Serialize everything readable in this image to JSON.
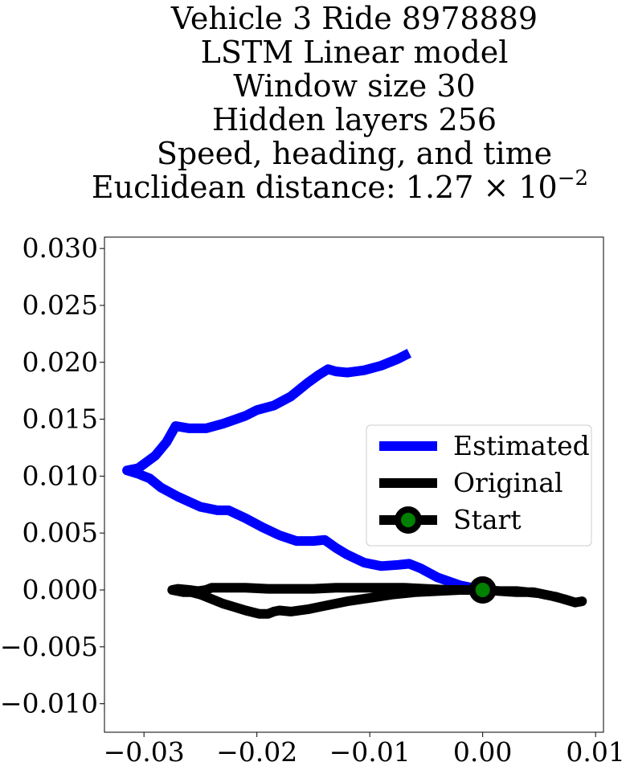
{
  "chart_data": {
    "type": "line",
    "title_lines": [
      "Vehicle 3 Ride 8978889",
      "LSTM Linear model",
      "Window size 30",
      "Hidden layers 256",
      "Speed, heading, and time"
    ],
    "title_distance_prefix": "Euclidean distance: 1.27 × 10",
    "title_distance_exponent": "−2",
    "xlim": [
      -0.0335,
      0.0107
    ],
    "ylim": [
      -0.0125,
      0.031
    ],
    "x_ticks": [
      -0.03,
      -0.02,
      -0.01,
      0.0,
      0.01
    ],
    "x_tick_labels": [
      "−0.03",
      "−0.02",
      "−0.01",
      "0.00",
      "0.01"
    ],
    "y_ticks": [
      0.03,
      0.025,
      0.02,
      0.015,
      0.01,
      0.005,
      0.0,
      -0.005,
      -0.01
    ],
    "y_tick_labels": [
      "0.030",
      "0.025",
      "0.020",
      "0.015",
      "0.010",
      "0.005",
      "0.000",
      "−0.005",
      "−0.010"
    ],
    "grid": false,
    "legend_position": "center-right",
    "series": [
      {
        "name": "Estimated",
        "color": "#0000ff",
        "points": [
          [
            0.0,
            0.0
          ],
          [
            -0.002,
            0.0004
          ],
          [
            -0.004,
            0.0011
          ],
          [
            -0.0055,
            0.0019
          ],
          [
            -0.0065,
            0.0023
          ],
          [
            -0.0075,
            0.0022
          ],
          [
            -0.009,
            0.0021
          ],
          [
            -0.0105,
            0.0024
          ],
          [
            -0.012,
            0.0031
          ],
          [
            -0.013,
            0.0037
          ],
          [
            -0.014,
            0.0044
          ],
          [
            -0.015,
            0.0043
          ],
          [
            -0.0165,
            0.0043
          ],
          [
            -0.018,
            0.0048
          ],
          [
            -0.0195,
            0.0055
          ],
          [
            -0.021,
            0.0063
          ],
          [
            -0.0225,
            0.007
          ],
          [
            -0.0235,
            0.007
          ],
          [
            -0.025,
            0.0073
          ],
          [
            -0.027,
            0.0082
          ],
          [
            -0.0285,
            0.009
          ],
          [
            -0.0295,
            0.0098
          ],
          [
            -0.03,
            0.01
          ],
          [
            -0.0305,
            0.0102
          ],
          [
            -0.0315,
            0.0105
          ],
          [
            -0.0305,
            0.0107
          ],
          [
            -0.029,
            0.0118
          ],
          [
            -0.028,
            0.013
          ],
          [
            -0.0272,
            0.0144
          ],
          [
            -0.026,
            0.0142
          ],
          [
            -0.0245,
            0.0142
          ],
          [
            -0.023,
            0.0146
          ],
          [
            -0.021,
            0.0153
          ],
          [
            -0.02,
            0.0158
          ],
          [
            -0.0185,
            0.0162
          ],
          [
            -0.017,
            0.017
          ],
          [
            -0.0155,
            0.0182
          ],
          [
            -0.0145,
            0.0189
          ],
          [
            -0.0137,
            0.0194
          ],
          [
            -0.013,
            0.0192
          ],
          [
            -0.012,
            0.0191
          ],
          [
            -0.0105,
            0.0193
          ],
          [
            -0.009,
            0.0197
          ],
          [
            -0.0075,
            0.0203
          ],
          [
            -0.0065,
            0.0208
          ]
        ]
      },
      {
        "name": "Original",
        "color": "#000000",
        "points": [
          [
            0.0,
            0.0
          ],
          [
            0.0015,
            -0.0001
          ],
          [
            0.003,
            -0.0002
          ],
          [
            0.0045,
            -0.0002
          ],
          [
            0.0055,
            -0.0004
          ],
          [
            0.0065,
            -0.0006
          ],
          [
            0.0075,
            -0.0009
          ],
          [
            0.0082,
            -0.0011
          ],
          [
            0.0088,
            -0.001
          ],
          [
            0.0082,
            -0.0011
          ],
          [
            0.0072,
            -0.0008
          ],
          [
            0.006,
            -0.0005
          ],
          [
            0.005,
            -0.0003
          ],
          [
            0.003,
            -0.0001
          ],
          [
            0.0015,
            -0.0001
          ],
          [
            0.0,
            0.0
          ],
          [
            -0.002,
            0.0
          ],
          [
            -0.004,
            -0.0001
          ],
          [
            -0.006,
            -0.0002
          ],
          [
            -0.008,
            -0.0004
          ],
          [
            -0.01,
            -0.0007
          ],
          [
            -0.012,
            -0.001
          ],
          [
            -0.014,
            -0.0014
          ],
          [
            -0.0155,
            -0.0017
          ],
          [
            -0.017,
            -0.0019
          ],
          [
            -0.018,
            -0.0018
          ],
          [
            -0.0185,
            -0.0019
          ],
          [
            -0.019,
            -0.0021
          ],
          [
            -0.0198,
            -0.0021
          ],
          [
            -0.021,
            -0.0018
          ],
          [
            -0.022,
            -0.0015
          ],
          [
            -0.023,
            -0.0012
          ],
          [
            -0.024,
            -0.0008
          ],
          [
            -0.025,
            -0.0004
          ],
          [
            -0.0258,
            -0.0002
          ],
          [
            -0.0265,
            -0.0002
          ],
          [
            -0.027,
            -0.0001
          ],
          [
            -0.0275,
            0.0
          ],
          [
            -0.027,
            0.0001
          ],
          [
            -0.026,
            0.0
          ],
          [
            -0.0252,
            -0.0001
          ],
          [
            -0.0245,
            0.0
          ],
          [
            -0.024,
            0.0002
          ],
          [
            -0.023,
            0.0002
          ],
          [
            -0.021,
            0.0002
          ],
          [
            -0.019,
            0.0001
          ],
          [
            -0.017,
            0.0001
          ],
          [
            -0.015,
            0.0001
          ],
          [
            -0.013,
            0.0002
          ],
          [
            -0.011,
            0.0002
          ],
          [
            -0.009,
            0.0002
          ],
          [
            -0.007,
            0.0002
          ],
          [
            -0.005,
            0.0001
          ],
          [
            -0.003,
            0.0
          ],
          [
            -0.001,
            0.0
          ],
          [
            0.0,
            0.0
          ]
        ]
      }
    ],
    "start": {
      "name": "Start",
      "x": 0.0,
      "y": 0.0,
      "marker_face": "#008000",
      "marker_edge": "#000000"
    }
  }
}
